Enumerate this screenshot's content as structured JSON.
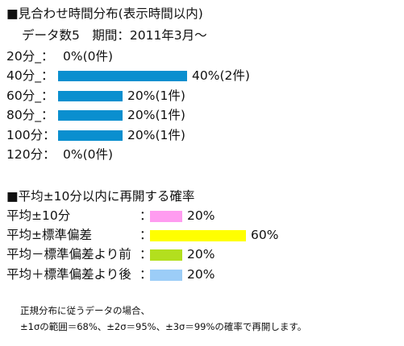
{
  "distribution": {
    "heading": "■見合わせ時間分布(表示時間以内)",
    "subheading": "データ数5　期間：2011年3月～",
    "chart_data": {
      "type": "bar",
      "orientation": "horizontal",
      "title": "■見合わせ時間分布(表示時間以内)",
      "subtitle": "データ数5　期間：2011年3月～",
      "categories": [
        "20分_：",
        "40分_：",
        "60分_：",
        "80分_：",
        "100分：",
        "120分："
      ],
      "values": [
        0,
        40,
        20,
        20,
        20,
        0
      ],
      "counts": [
        0,
        2,
        1,
        1,
        1,
        0
      ],
      "data_labels": [
        "0%(0件)",
        "40%(2件)",
        "20%(1件)",
        "20%(1件)",
        "20%(1件)",
        "0%(0件)"
      ],
      "unit": "%",
      "xlim": [
        0,
        40
      ],
      "bar_color": "#0a8fcf",
      "grid": false
    }
  },
  "probability": {
    "heading": "■平均±10分以内に再開する確率",
    "chart_data": {
      "type": "bar",
      "orientation": "horizontal",
      "categories": [
        "平均±10分",
        "平均±標準偏差",
        "平均－標準偏差より前",
        "平均＋標準偏差より後"
      ],
      "separators": [
        "：",
        "：",
        "：",
        "："
      ],
      "values": [
        20,
        60,
        20,
        20
      ],
      "data_labels": [
        "20%",
        "60%",
        "20%",
        "20%"
      ],
      "colors": [
        "#ff9cf0",
        "#ffff00",
        "#b3df1e",
        "#9ccdf7"
      ],
      "unit": "%",
      "xlim": [
        0,
        60
      ],
      "grid": false
    }
  },
  "footnote": {
    "line1": "正規分布に従うデータの場合、",
    "line2": "±1σの範囲＝68%、±2σ＝95%、±3σ＝99%の確率で再開します。"
  }
}
